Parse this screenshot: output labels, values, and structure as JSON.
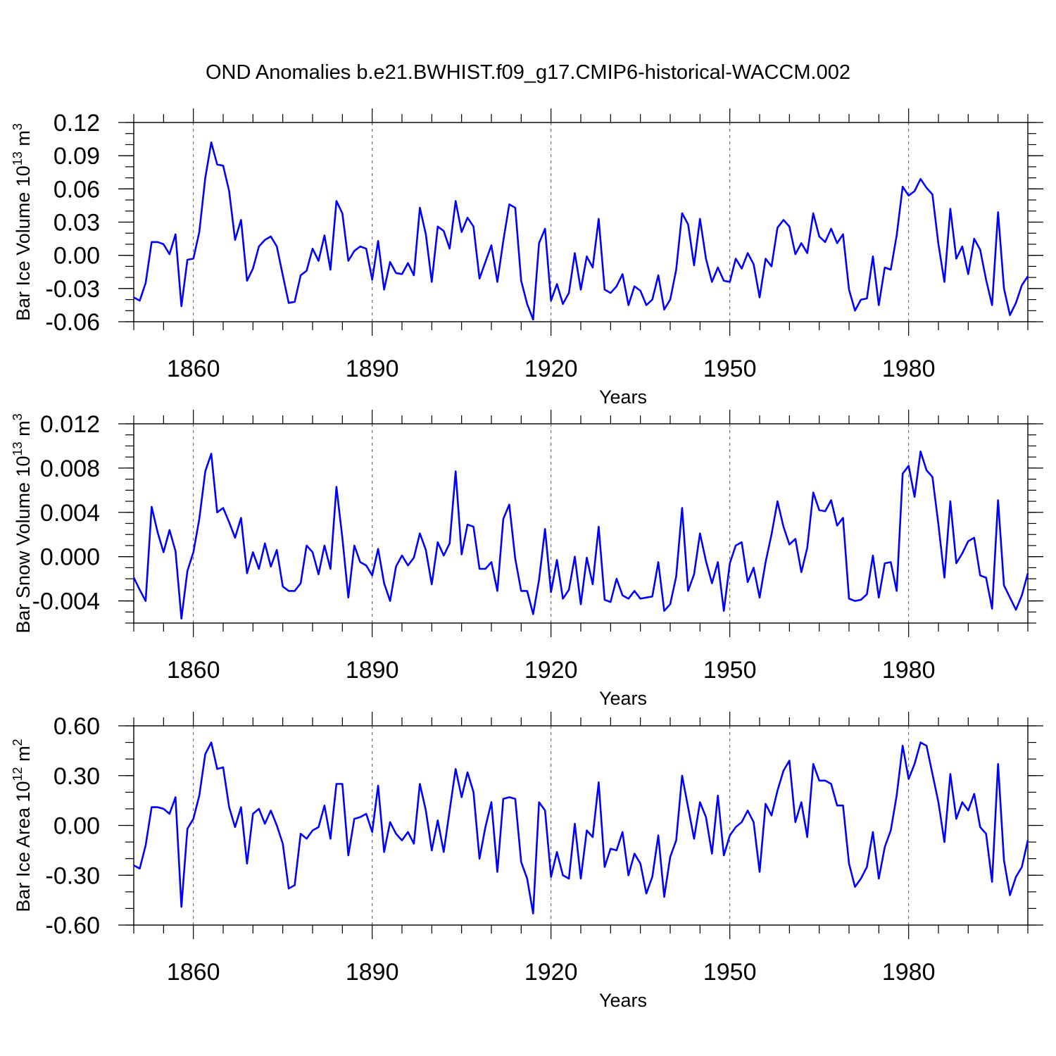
{
  "figure_title": "OND Anomalies b.e21.BWHIST.f09_g17.CMIP6-historical-WACCM.002",
  "colors": {
    "line": "#0000ff",
    "axis": "#000000",
    "grid": "#555555"
  },
  "chart_data": [
    {
      "type": "line",
      "title": "OND Anomalies b.e21.BWHIST.f09_g17.CMIP6-historical-WACCM.002",
      "ylabel_text": "Bar Ice Volume 10",
      "ylabel_exp": "13",
      "ylabel_unit": " m",
      "ylabel_unit_exp": "3",
      "xlabel": "Years",
      "xlim": [
        1850,
        2000
      ],
      "ylim": [
        -0.06,
        0.12
      ],
      "yticks": [
        -0.06,
        -0.03,
        0.0,
        0.03,
        0.06,
        0.09,
        0.12
      ],
      "ytick_labels": [
        "-0.06",
        "-0.03",
        "0.00",
        "0.03",
        "0.06",
        "0.09",
        "0.12"
      ],
      "yminor_step": 0.01,
      "xticks": [
        1860,
        1890,
        1920,
        1950,
        1980
      ],
      "xtick_labels": [
        "1860",
        "1890",
        "1920",
        "1950",
        "1980"
      ],
      "x_start": 1850,
      "values": [
        -0.038,
        -0.041,
        -0.025,
        0.012,
        0.012,
        0.01,
        0.001,
        0.019,
        -0.046,
        -0.004,
        -0.003,
        0.021,
        0.07,
        0.102,
        0.082,
        0.081,
        0.058,
        0.014,
        0.032,
        -0.023,
        -0.012,
        0.008,
        0.014,
        0.017,
        0.008,
        -0.018,
        -0.043,
        -0.042,
        -0.018,
        -0.014,
        0.006,
        -0.005,
        0.018,
        -0.013,
        0.049,
        0.038,
        -0.005,
        0.004,
        0.008,
        0.006,
        -0.022,
        0.013,
        -0.031,
        -0.006,
        -0.016,
        -0.017,
        -0.007,
        -0.018,
        0.043,
        0.019,
        -0.024,
        0.026,
        0.022,
        0.006,
        0.049,
        0.021,
        0.034,
        0.026,
        -0.021,
        -0.006,
        0.009,
        -0.024,
        0.013,
        0.046,
        0.043,
        -0.023,
        -0.044,
        -0.058,
        0.011,
        0.024,
        -0.041,
        -0.026,
        -0.044,
        -0.034,
        0.002,
        -0.031,
        -0.001,
        -0.011,
        0.033,
        -0.031,
        -0.034,
        -0.028,
        -0.017,
        -0.045,
        -0.028,
        -0.032,
        -0.045,
        -0.04,
        -0.018,
        -0.049,
        -0.04,
        -0.013,
        0.038,
        0.028,
        -0.009,
        0.033,
        -0.003,
        -0.024,
        -0.011,
        -0.023,
        -0.024,
        -0.003,
        -0.012,
        0.002,
        -0.008,
        -0.038,
        -0.003,
        -0.01,
        0.025,
        0.032,
        0.026,
        0.001,
        0.011,
        0.002,
        0.038,
        0.017,
        0.012,
        0.024,
        0.011,
        0.019,
        -0.031,
        -0.05,
        -0.04,
        -0.039,
        -0.001,
        -0.045,
        -0.011,
        -0.013,
        0.018,
        0.062,
        0.054,
        0.058,
        0.069,
        0.061,
        0.055,
        0.01,
        -0.024,
        0.042,
        -0.003,
        0.008,
        -0.017,
        0.015,
        0.005,
        -0.022,
        -0.045,
        0.039,
        -0.03,
        -0.054,
        -0.043,
        -0.027,
        -0.019
      ]
    },
    {
      "type": "line",
      "ylabel_text": "Bar Snow Volume 10",
      "ylabel_exp": "13",
      "ylabel_unit": " m",
      "ylabel_unit_exp": "3",
      "xlabel": "Years",
      "xlim": [
        1850,
        2000
      ],
      "ylim": [
        -0.006,
        0.012
      ],
      "yticks": [
        -0.004,
        0.0,
        0.004,
        0.008,
        0.012
      ],
      "ytick_labels": [
        "-0.004",
        "0.000",
        "0.004",
        "0.008",
        "0.012"
      ],
      "yminor_step": 0.001,
      "xticks": [
        1860,
        1890,
        1920,
        1950,
        1980
      ],
      "xtick_labels": [
        "1860",
        "1890",
        "1920",
        "1950",
        "1980"
      ],
      "x_start": 1850,
      "values": [
        -0.0019,
        -0.003,
        -0.004,
        0.0045,
        0.0022,
        0.0004,
        0.0024,
        0.0005,
        -0.0056,
        -0.0013,
        0.0004,
        0.0034,
        0.0077,
        0.0093,
        0.004,
        0.0044,
        0.0031,
        0.0017,
        0.0035,
        -0.0015,
        0.0004,
        -0.0011,
        0.0012,
        -0.0009,
        0.0006,
        -0.0027,
        -0.0031,
        -0.0031,
        -0.0024,
        0.001,
        0.0004,
        -0.0016,
        0.001,
        -0.0011,
        0.0063,
        0.0017,
        -0.0037,
        0.001,
        -0.0005,
        -0.0008,
        -0.0017,
        0.0007,
        -0.0024,
        -0.004,
        -0.0009,
        0.0001,
        -0.0008,
        -0.0001,
        0.0021,
        0.0006,
        -0.0025,
        0.0013,
        0.0001,
        0.0012,
        0.0077,
        0.0002,
        0.0029,
        0.0027,
        -0.0011,
        -0.0011,
        -0.0005,
        -0.0031,
        0.0034,
        0.0047,
        -0.0002,
        -0.0031,
        -0.0031,
        -0.0052,
        -0.0021,
        0.0025,
        -0.0032,
        -0.0003,
        -0.0038,
        -0.003,
        0.0,
        -0.0043,
        -0.0001,
        -0.0025,
        0.0027,
        -0.0039,
        -0.0041,
        -0.002,
        -0.0035,
        -0.0038,
        -0.0031,
        -0.0038,
        -0.0037,
        -0.0036,
        -0.0005,
        -0.0049,
        -0.0043,
        -0.0018,
        0.0044,
        -0.0031,
        -0.0016,
        0.0021,
        -0.0004,
        -0.0024,
        -0.0005,
        -0.0049,
        -0.0006,
        0.001,
        0.0013,
        -0.0023,
        -0.001,
        -0.0037,
        -0.0005,
        0.002,
        0.005,
        0.0027,
        0.0011,
        0.0016,
        -0.0014,
        0.0008,
        0.0058,
        0.0042,
        0.0041,
        0.0051,
        0.0028,
        0.0035,
        -0.0038,
        -0.004,
        -0.0039,
        -0.0034,
        0.0001,
        -0.0037,
        -0.0006,
        -0.0005,
        -0.0031,
        0.0075,
        0.0082,
        0.0054,
        0.0095,
        0.0078,
        0.0072,
        0.0029,
        -0.0019,
        0.005,
        -0.0006,
        0.0003,
        0.0014,
        0.0017,
        -0.0017,
        -0.0019,
        -0.0047,
        0.0051,
        -0.0026,
        -0.0037,
        -0.0048,
        -0.0035,
        -0.0015
      ]
    },
    {
      "type": "line",
      "ylabel_text": "Bar Ice Area 10",
      "ylabel_exp": "12",
      "ylabel_unit": " m",
      "ylabel_unit_exp": "2",
      "xlabel": "Years",
      "xlim": [
        1850,
        2000
      ],
      "ylim": [
        -0.6,
        0.6
      ],
      "yticks": [
        -0.6,
        -0.3,
        0.0,
        0.3,
        0.6
      ],
      "ytick_labels": [
        "-0.60",
        "-0.30",
        "0.00",
        "0.30",
        "0.60"
      ],
      "yminor_step": 0.1,
      "xticks": [
        1860,
        1890,
        1920,
        1950,
        1980
      ],
      "xtick_labels": [
        "1860",
        "1890",
        "1920",
        "1950",
        "1980"
      ],
      "x_start": 1850,
      "values": [
        -0.24,
        -0.26,
        -0.12,
        0.11,
        0.11,
        0.1,
        0.07,
        0.17,
        -0.49,
        -0.02,
        0.04,
        0.18,
        0.43,
        0.5,
        0.34,
        0.35,
        0.11,
        -0.01,
        0.11,
        -0.23,
        0.07,
        0.1,
        0.01,
        0.09,
        0.0,
        -0.11,
        -0.38,
        -0.36,
        -0.05,
        -0.08,
        -0.03,
        -0.01,
        0.12,
        -0.08,
        0.25,
        0.25,
        -0.18,
        0.04,
        0.05,
        0.07,
        -0.04,
        0.24,
        -0.16,
        0.02,
        -0.05,
        -0.09,
        -0.04,
        -0.11,
        0.25,
        0.09,
        -0.15,
        0.03,
        -0.16,
        0.09,
        0.34,
        0.17,
        0.32,
        0.2,
        -0.2,
        -0.01,
        0.14,
        -0.28,
        0.16,
        0.17,
        0.16,
        -0.22,
        -0.32,
        -0.53,
        0.14,
        0.09,
        -0.31,
        -0.16,
        -0.3,
        -0.32,
        0.01,
        -0.32,
        -0.03,
        -0.07,
        0.26,
        -0.25,
        -0.14,
        -0.15,
        -0.04,
        -0.3,
        -0.17,
        -0.23,
        -0.41,
        -0.31,
        -0.06,
        -0.43,
        -0.19,
        -0.09,
        0.3,
        0.11,
        -0.08,
        0.14,
        0.05,
        -0.17,
        0.18,
        -0.18,
        -0.06,
        -0.01,
        0.02,
        0.09,
        0.02,
        -0.28,
        0.13,
        0.06,
        0.21,
        0.33,
        0.39,
        0.02,
        0.14,
        -0.07,
        0.37,
        0.27,
        0.27,
        0.25,
        0.12,
        0.12,
        -0.23,
        -0.37,
        -0.32,
        -0.25,
        -0.04,
        -0.32,
        -0.13,
        -0.03,
        0.18,
        0.48,
        0.28,
        0.37,
        0.5,
        0.48,
        0.31,
        0.14,
        -0.1,
        0.31,
        0.04,
        0.14,
        0.09,
        0.19,
        -0.01,
        -0.05,
        -0.34,
        0.37,
        -0.21,
        -0.42,
        -0.31,
        -0.25,
        -0.09
      ]
    }
  ]
}
